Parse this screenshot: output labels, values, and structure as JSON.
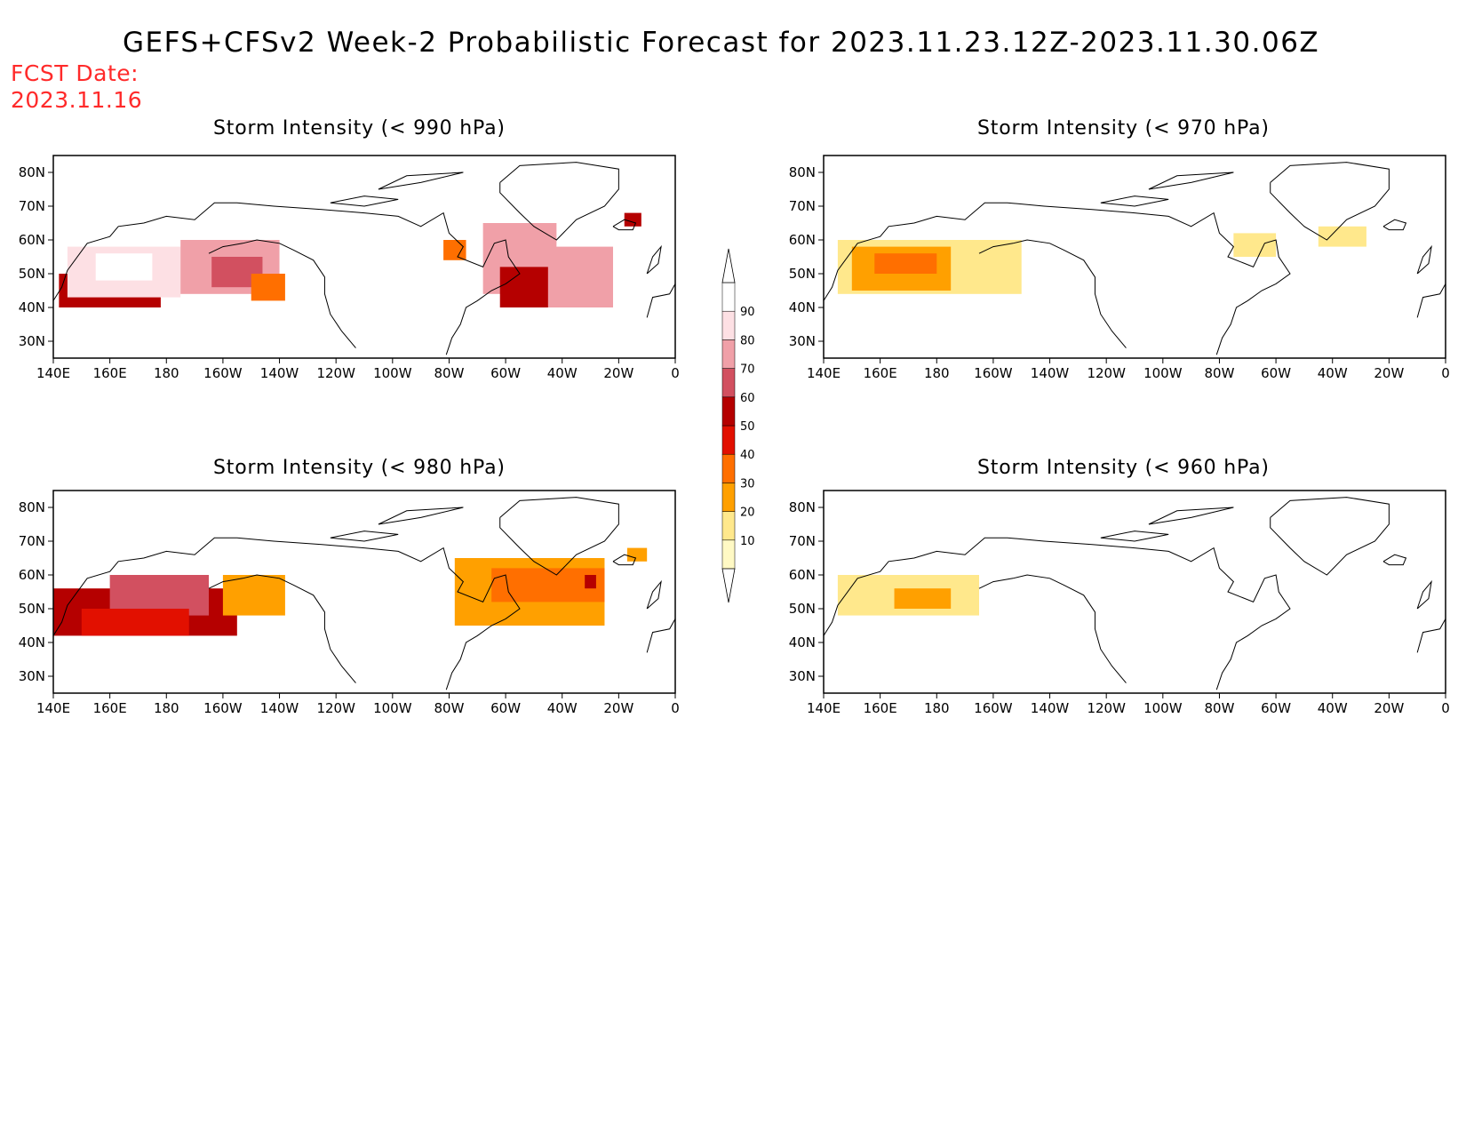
{
  "title": "GEFS+CFSv2 Week-2 Probabilistic Forecast for 2023.11.23.12Z-2023.11.30.06Z",
  "fcst_date": {
    "label": "FCST Date:",
    "value": "2023.11.16"
  },
  "axes": {
    "lon_ticks": [
      "140E",
      "160E",
      "180",
      "160W",
      "140W",
      "120W",
      "100W",
      "80W",
      "60W",
      "40W",
      "20W",
      "0"
    ],
    "lat_ticks": [
      "80N",
      "70N",
      "60N",
      "50N",
      "40N",
      "30N"
    ]
  },
  "colorbar": {
    "levels": [
      10,
      20,
      30,
      40,
      50,
      60,
      70,
      80,
      90
    ],
    "labels": [
      "10",
      "20",
      "30",
      "40",
      "50",
      "60",
      "70",
      "80",
      "90"
    ],
    "colors": [
      "#fff9c4",
      "#ffe88c",
      "#ffa000",
      "#ff6f00",
      "#e21000",
      "#b50000",
      "#d25060",
      "#f0a0a8",
      "#fde0e4",
      "#ffffff"
    ]
  },
  "chart_data": [
    {
      "type": "heatmap",
      "id": "p990",
      "title": "Storm Intensity (< 990 hPa)",
      "regions": [
        {
          "lon": [
            142,
            178
          ],
          "lat": [
            40,
            50
          ],
          "value": 55
        },
        {
          "lon": [
            145,
            185
          ],
          "lat": [
            43,
            58
          ],
          "value": 82
        },
        {
          "lon": [
            155,
            175
          ],
          "lat": [
            48,
            56
          ],
          "value": 93
        },
        {
          "lon": [
            185,
            220
          ],
          "lat": [
            44,
            60
          ],
          "value": 75
        },
        {
          "lon": [
            196,
            214
          ],
          "lat": [
            46,
            55
          ],
          "value": 60
        },
        {
          "lon": [
            210,
            222
          ],
          "lat": [
            42,
            50
          ],
          "value": 35
        },
        {
          "lon": [
            292,
            318
          ],
          "lat": [
            44,
            65
          ],
          "value": 78
        },
        {
          "lon": [
            298,
            325
          ],
          "lat": [
            40,
            52
          ],
          "value": 55
        },
        {
          "lon": [
            315,
            338
          ],
          "lat": [
            40,
            58
          ],
          "value": 75
        },
        {
          "lon": [
            278,
            286
          ],
          "lat": [
            54,
            60
          ],
          "value": 35
        },
        {
          "lon": [
            342,
            348
          ],
          "lat": [
            64,
            68
          ],
          "value": 55
        }
      ]
    },
    {
      "type": "heatmap",
      "id": "p980",
      "title": "Storm Intensity (< 980 hPa)",
      "regions": [
        {
          "lon": [
            140,
            205
          ],
          "lat": [
            42,
            56
          ],
          "value": 55
        },
        {
          "lon": [
            160,
            195
          ],
          "lat": [
            48,
            60
          ],
          "value": 68
        },
        {
          "lon": [
            150,
            188
          ],
          "lat": [
            42,
            50
          ],
          "value": 42
        },
        {
          "lon": [
            200,
            222
          ],
          "lat": [
            48,
            60
          ],
          "value": 25
        },
        {
          "lon": [
            282,
            335
          ],
          "lat": [
            45,
            65
          ],
          "value": 25
        },
        {
          "lon": [
            295,
            335
          ],
          "lat": [
            52,
            62
          ],
          "value": 38
        },
        {
          "lon": [
            328,
            332
          ],
          "lat": [
            56,
            60
          ],
          "value": 55
        },
        {
          "lon": [
            343,
            350
          ],
          "lat": [
            64,
            68
          ],
          "value": 25
        }
      ]
    },
    {
      "type": "heatmap",
      "id": "p970",
      "title": "Storm Intensity (< 970 hPa)",
      "regions": [
        {
          "lon": [
            145,
            210
          ],
          "lat": [
            44,
            60
          ],
          "value": 15
        },
        {
          "lon": [
            150,
            185
          ],
          "lat": [
            45,
            58
          ],
          "value": 28
        },
        {
          "lon": [
            158,
            180
          ],
          "lat": [
            50,
            56
          ],
          "value": 38
        },
        {
          "lon": [
            285,
            300
          ],
          "lat": [
            55,
            62
          ],
          "value": 15
        },
        {
          "lon": [
            315,
            332
          ],
          "lat": [
            58,
            64
          ],
          "value": 15
        }
      ]
    },
    {
      "type": "heatmap",
      "id": "p960",
      "title": "Storm Intensity (< 960 hPa)",
      "regions": [
        {
          "lon": [
            145,
            195
          ],
          "lat": [
            48,
            60
          ],
          "value": 15
        },
        {
          "lon": [
            165,
            185
          ],
          "lat": [
            50,
            56
          ],
          "value": 22
        }
      ]
    }
  ]
}
